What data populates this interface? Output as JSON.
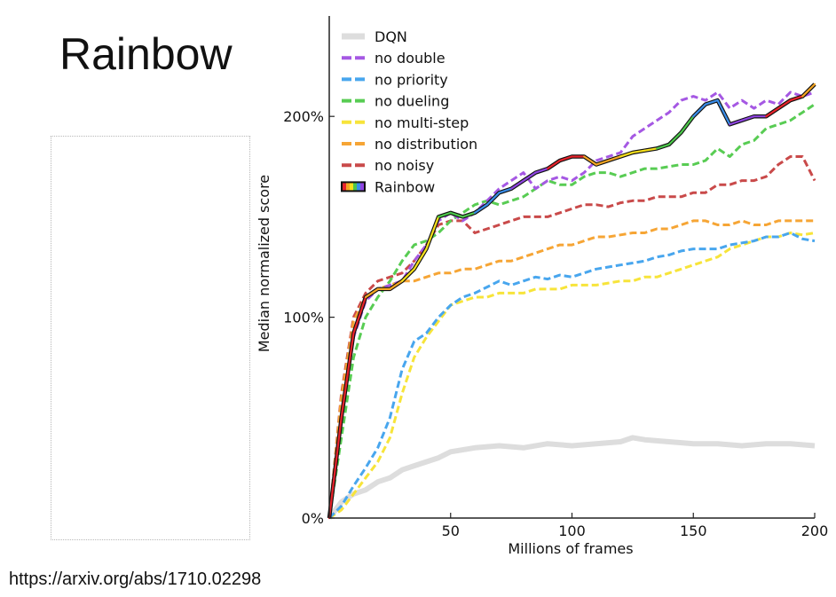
{
  "slide": {
    "title": "Rainbow",
    "source": "https://arxiv.org/abs/1710.02298"
  },
  "chart_data": {
    "type": "line",
    "title": "",
    "xlabel": "Millions of frames",
    "ylabel": "Median normalized score",
    "xlim": [
      0,
      200
    ],
    "ylim": [
      0,
      250
    ],
    "xticks": [
      50,
      100,
      150,
      200
    ],
    "xtick_labels": [
      "50",
      "100",
      "150",
      "200"
    ],
    "yticks": [
      0,
      100,
      200
    ],
    "ytick_labels": [
      "0%",
      "100%",
      "200%"
    ],
    "legend_position": "top-left",
    "grid": false,
    "rainbow_colors": [
      "#e8232b",
      "#f5a623",
      "#f7e01b",
      "#4cc74b",
      "#3a8eea",
      "#8e44e0"
    ],
    "series": [
      {
        "name": "DQN",
        "color": "#dddddd",
        "style": "solid",
        "x": [
          0,
          5,
          10,
          15,
          20,
          25,
          30,
          35,
          40,
          45,
          50,
          60,
          70,
          80,
          90,
          100,
          110,
          120,
          125,
          130,
          140,
          150,
          160,
          170,
          180,
          190,
          200
        ],
        "y": [
          0,
          8,
          12,
          14,
          18,
          20,
          24,
          26,
          28,
          30,
          33,
          35,
          36,
          35,
          37,
          36,
          37,
          38,
          40,
          39,
          38,
          37,
          37,
          36,
          37,
          37,
          36
        ]
      },
      {
        "name": "no double",
        "color": "#a558e3",
        "style": "dashed",
        "x": [
          0,
          5,
          10,
          15,
          20,
          25,
          30,
          35,
          40,
          45,
          50,
          55,
          60,
          65,
          70,
          75,
          80,
          85,
          90,
          95,
          100,
          105,
          110,
          115,
          120,
          125,
          130,
          135,
          140,
          145,
          150,
          155,
          160,
          165,
          170,
          175,
          180,
          185,
          190,
          195,
          200
        ],
        "y": [
          0,
          50,
          90,
          108,
          114,
          116,
          118,
          128,
          136,
          148,
          152,
          148,
          152,
          158,
          164,
          168,
          172,
          164,
          168,
          170,
          168,
          172,
          178,
          180,
          182,
          190,
          194,
          198,
          202,
          208,
          210,
          208,
          212,
          204,
          208,
          204,
          208,
          206,
          212,
          210,
          212
        ]
      },
      {
        "name": "no priority",
        "color": "#48a6ee",
        "style": "dashed",
        "x": [
          0,
          5,
          10,
          15,
          20,
          25,
          30,
          35,
          40,
          45,
          50,
          55,
          60,
          65,
          70,
          75,
          80,
          85,
          90,
          95,
          100,
          105,
          110,
          115,
          120,
          125,
          130,
          135,
          140,
          145,
          150,
          155,
          160,
          165,
          170,
          175,
          180,
          185,
          190,
          195,
          200
        ],
        "y": [
          0,
          6,
          16,
          25,
          35,
          50,
          74,
          88,
          92,
          100,
          106,
          110,
          112,
          115,
          118,
          116,
          118,
          120,
          119,
          121,
          120,
          122,
          124,
          125,
          126,
          127,
          128,
          130,
          131,
          133,
          134,
          134,
          134,
          136,
          137,
          138,
          140,
          140,
          142,
          139,
          138
        ]
      },
      {
        "name": "no dueling",
        "color": "#58cc53",
        "style": "dashed",
        "x": [
          0,
          5,
          10,
          15,
          20,
          25,
          30,
          35,
          40,
          45,
          50,
          55,
          60,
          65,
          70,
          75,
          80,
          85,
          90,
          95,
          100,
          105,
          110,
          115,
          120,
          125,
          130,
          135,
          140,
          145,
          150,
          155,
          160,
          165,
          170,
          175,
          180,
          185,
          190,
          195,
          200
        ],
        "y": [
          0,
          40,
          80,
          100,
          110,
          118,
          128,
          136,
          138,
          142,
          148,
          152,
          156,
          158,
          156,
          158,
          160,
          164,
          168,
          166,
          166,
          170,
          172,
          172,
          170,
          172,
          174,
          174,
          175,
          176,
          176,
          178,
          184,
          180,
          186,
          188,
          194,
          196,
          198,
          202,
          206
        ]
      },
      {
        "name": "no multi-step",
        "color": "#f7e43a",
        "style": "dashed",
        "x": [
          0,
          5,
          10,
          15,
          20,
          25,
          30,
          35,
          40,
          45,
          50,
          55,
          60,
          65,
          70,
          75,
          80,
          85,
          90,
          95,
          100,
          105,
          110,
          115,
          120,
          125,
          130,
          135,
          140,
          145,
          150,
          155,
          160,
          165,
          170,
          175,
          180,
          185,
          190,
          195,
          200
        ],
        "y": [
          0,
          4,
          12,
          20,
          28,
          40,
          62,
          80,
          90,
          98,
          106,
          108,
          110,
          110,
          112,
          112,
          112,
          114,
          114,
          114,
          116,
          116,
          116,
          117,
          118,
          118,
          120,
          120,
          122,
          124,
          126,
          128,
          130,
          134,
          136,
          138,
          140,
          140,
          142,
          141,
          142
        ]
      },
      {
        "name": "no distribution",
        "color": "#f6a535",
        "style": "dashed",
        "x": [
          0,
          5,
          10,
          15,
          20,
          25,
          30,
          35,
          40,
          45,
          50,
          55,
          60,
          65,
          70,
          75,
          80,
          85,
          90,
          95,
          100,
          105,
          110,
          115,
          120,
          125,
          130,
          135,
          140,
          145,
          150,
          155,
          160,
          165,
          170,
          175,
          180,
          185,
          190,
          195,
          200
        ],
        "y": [
          0,
          60,
          98,
          110,
          114,
          116,
          118,
          118,
          120,
          122,
          122,
          124,
          124,
          126,
          128,
          128,
          130,
          132,
          134,
          136,
          136,
          138,
          140,
          140,
          141,
          142,
          142,
          144,
          144,
          146,
          148,
          148,
          146,
          146,
          148,
          146,
          146,
          148,
          148,
          148,
          148
        ]
      },
      {
        "name": "no noisy",
        "color": "#c94a4a",
        "style": "dashed",
        "x": [
          0,
          5,
          10,
          15,
          20,
          25,
          30,
          35,
          40,
          45,
          50,
          55,
          60,
          65,
          70,
          75,
          80,
          85,
          90,
          95,
          100,
          105,
          110,
          115,
          120,
          125,
          130,
          135,
          140,
          145,
          150,
          155,
          160,
          165,
          170,
          175,
          180,
          185,
          190,
          195,
          200
        ],
        "y": [
          0,
          62,
          100,
          112,
          118,
          120,
          122,
          128,
          136,
          146,
          148,
          148,
          142,
          144,
          146,
          148,
          150,
          150,
          150,
          152,
          154,
          156,
          156,
          155,
          157,
          158,
          158,
          160,
          160,
          160,
          162,
          162,
          166,
          166,
          168,
          168,
          170,
          176,
          180,
          180,
          168
        ]
      },
      {
        "name": "Rainbow",
        "color": "rainbow",
        "style": "solid",
        "x": [
          0,
          5,
          10,
          15,
          20,
          25,
          30,
          35,
          40,
          45,
          50,
          55,
          60,
          65,
          70,
          75,
          80,
          85,
          90,
          95,
          100,
          105,
          110,
          115,
          120,
          125,
          130,
          135,
          140,
          145,
          150,
          155,
          160,
          165,
          170,
          175,
          180,
          185,
          190,
          195,
          200
        ],
        "y": [
          0,
          50,
          92,
          110,
          114,
          114,
          118,
          124,
          134,
          150,
          152,
          150,
          152,
          156,
          162,
          164,
          168,
          172,
          174,
          178,
          180,
          180,
          176,
          178,
          180,
          182,
          183,
          184,
          186,
          192,
          200,
          206,
          208,
          196,
          198,
          200,
          200,
          204,
          208,
          210,
          216
        ]
      }
    ]
  }
}
